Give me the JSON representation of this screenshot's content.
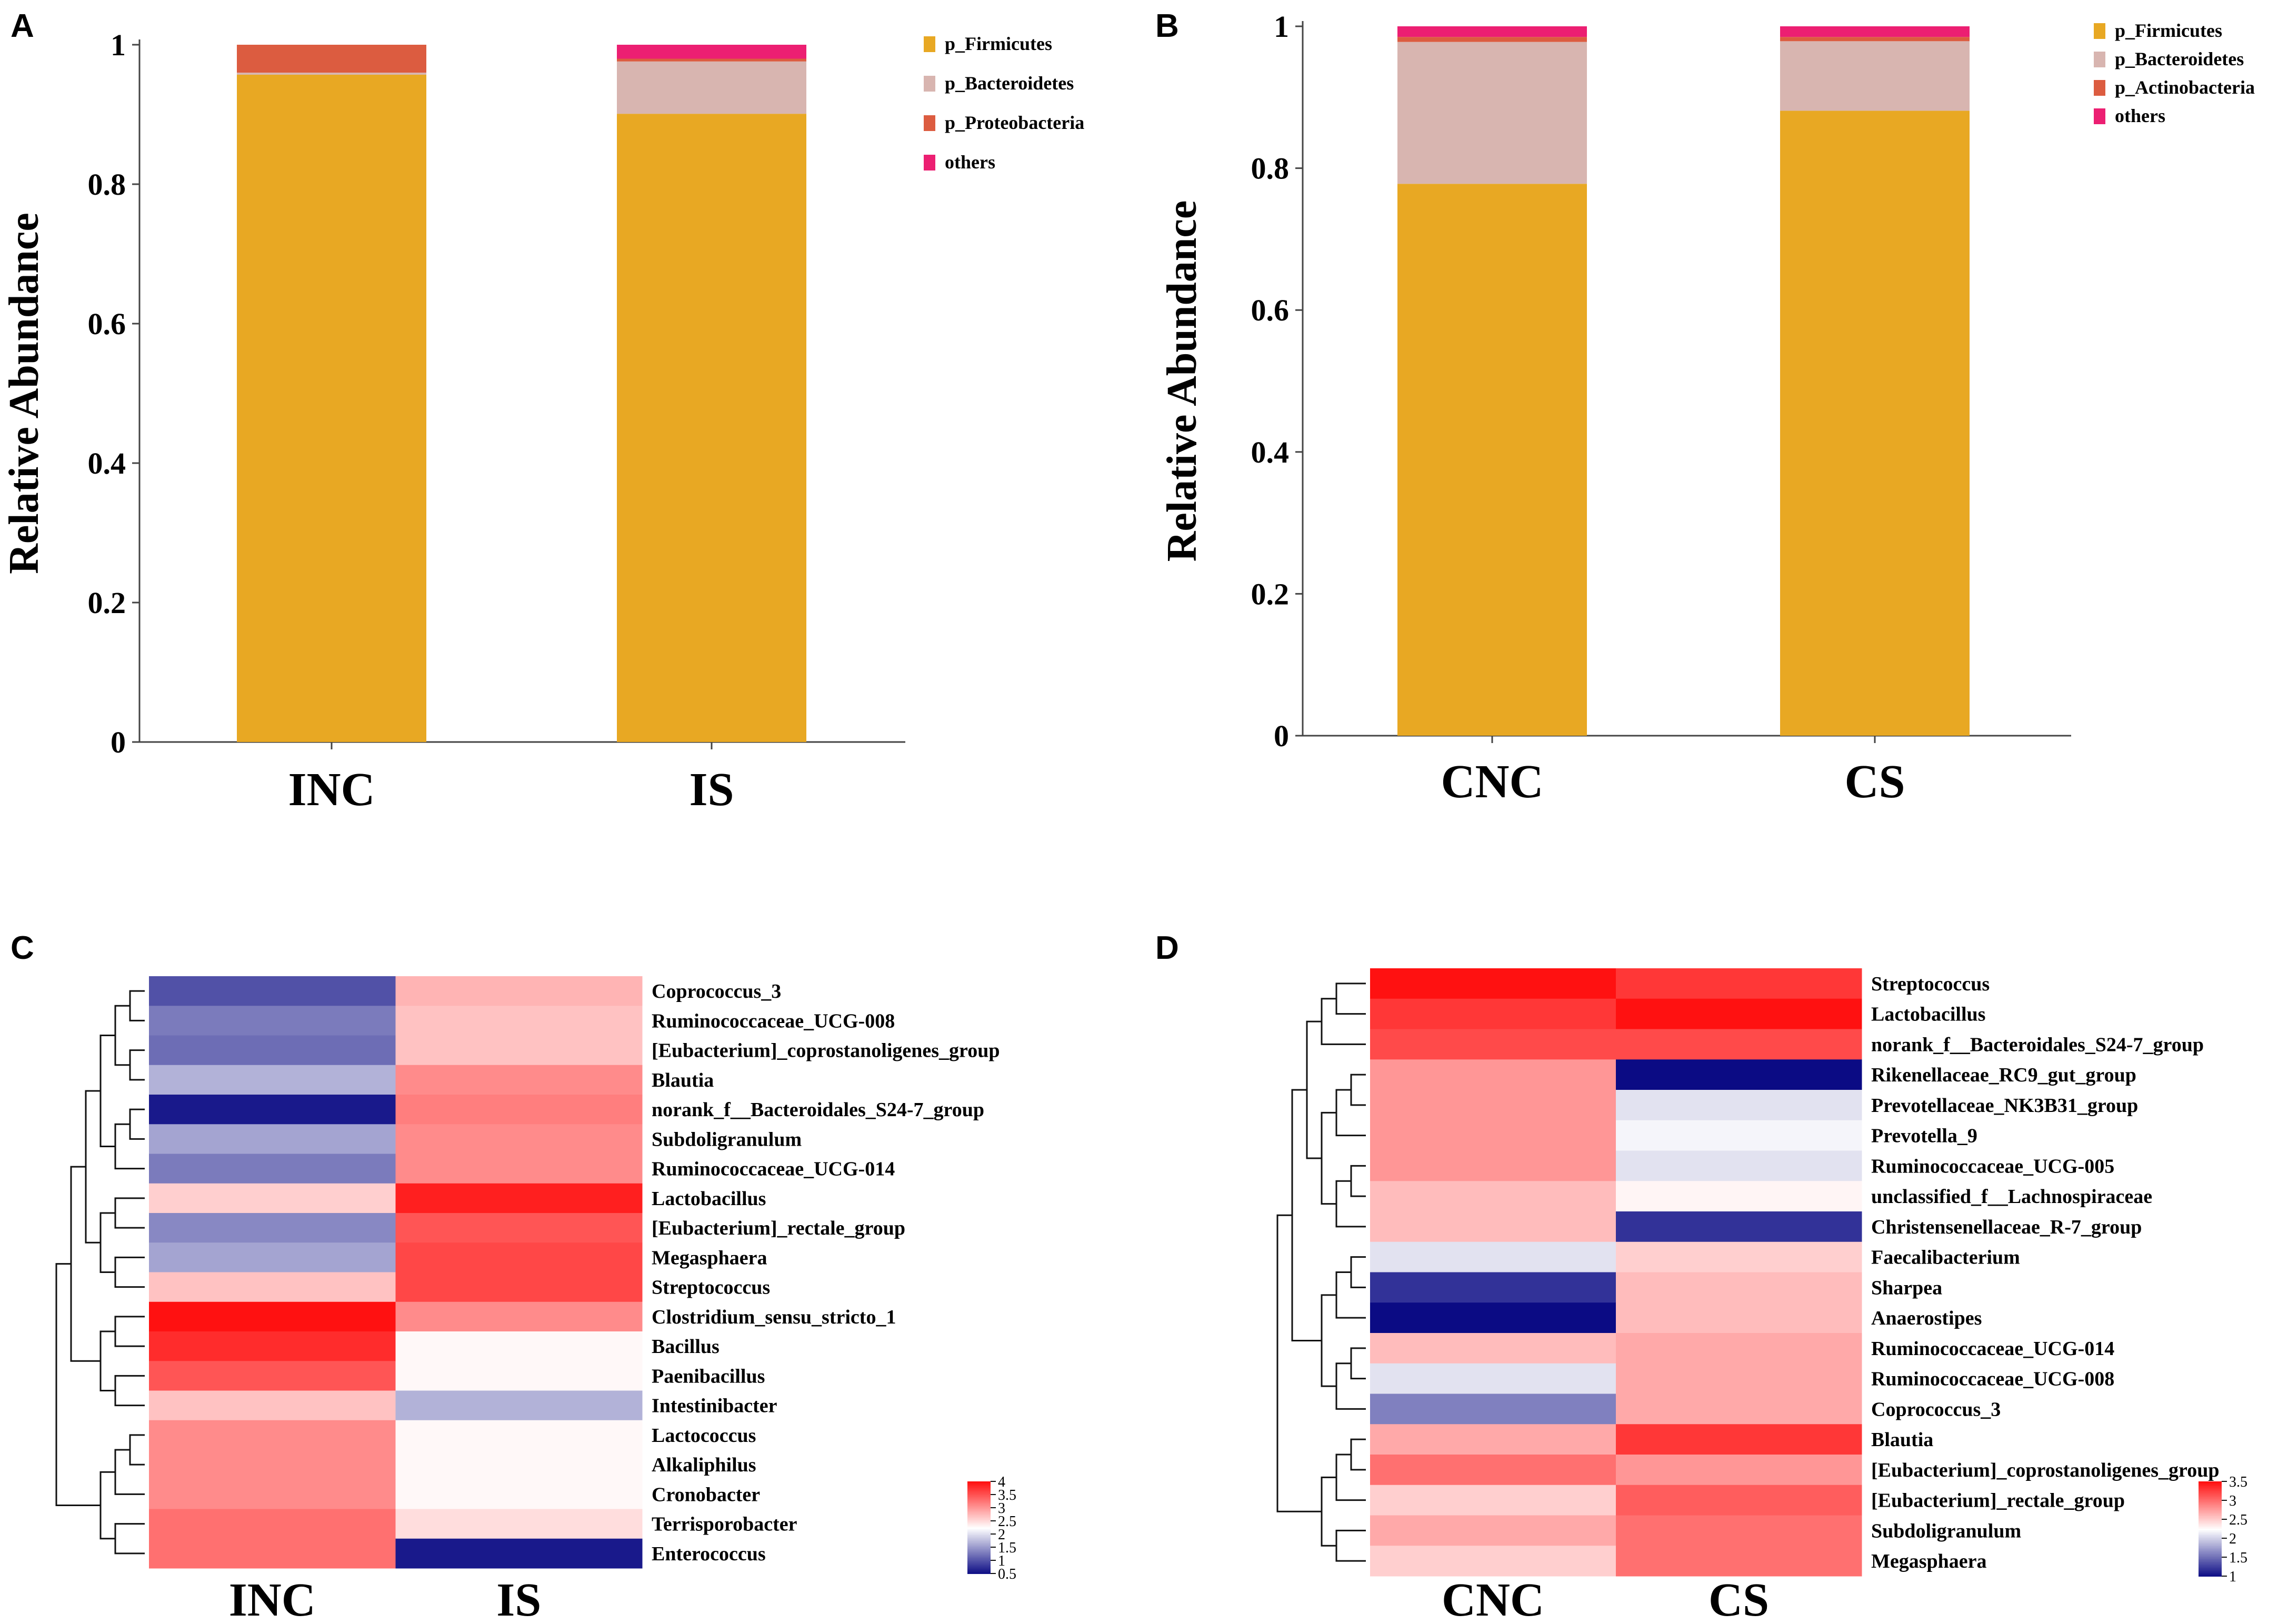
{
  "panels": {
    "A": "A",
    "B": "B",
    "C": "C",
    "D": "D"
  },
  "chart_data": [
    {
      "panel": "A",
      "type": "bar",
      "stacked": true,
      "ylabel": "Relative Abundance",
      "ylim": [
        0,
        1
      ],
      "yticks": [
        "0",
        "0.2",
        "0.4",
        "0.6",
        "0.8",
        "1"
      ],
      "categories": [
        "INC",
        "IS"
      ],
      "legend": "top-right",
      "series": [
        {
          "name": "p_Firmicutes",
          "color": "#E8A823",
          "values": [
            0.957,
            0.901
          ]
        },
        {
          "name": "p_Bacteroidetes",
          "color": "#D8B5B0",
          "values": [
            0.003,
            0.075
          ]
        },
        {
          "name": "p_Proteobacteria",
          "color": "#DC5C40",
          "values": [
            0.04,
            0.004
          ]
        },
        {
          "name": "others",
          "color": "#EC1F72",
          "values": [
            0.0,
            0.02
          ]
        }
      ]
    },
    {
      "panel": "B",
      "type": "bar",
      "stacked": true,
      "ylabel": "Relative Abundance",
      "ylim": [
        0,
        1
      ],
      "yticks": [
        "0",
        "0.2",
        "0.4",
        "0.6",
        "0.8",
        "1"
      ],
      "categories": [
        "CNC",
        "CS"
      ],
      "legend": "top-right",
      "series": [
        {
          "name": "p_Firmicutes",
          "color": "#E8A823",
          "values": [
            0.778,
            0.881
          ]
        },
        {
          "name": "p_Bacteroidetes",
          "color": "#D8B5B0",
          "values": [
            0.2,
            0.098
          ]
        },
        {
          "name": "p_Actinobacteria",
          "color": "#DC5C40",
          "values": [
            0.007,
            0.006
          ]
        },
        {
          "name": "others",
          "color": "#EC1F72",
          "values": [
            0.015,
            0.015
          ]
        }
      ]
    },
    {
      "panel": "C",
      "type": "heatmap",
      "columns": [
        "INC",
        "IS"
      ],
      "rows": [
        {
          "name": "Coprococcus_3",
          "values": [
            1.0,
            2.8
          ]
        },
        {
          "name": "Ruminococcaceae_UCG-008",
          "values": [
            1.3,
            2.7
          ]
        },
        {
          "name": "[Eubacterium]_coprostanoligenes_group",
          "values": [
            1.2,
            2.7
          ]
        },
        {
          "name": "Blautia",
          "values": [
            1.7,
            3.1
          ]
        },
        {
          "name": "norank_f__Bacteroidales_S24-7_group",
          "values": [
            0.6,
            3.2
          ]
        },
        {
          "name": "Subdoligranulum",
          "values": [
            1.6,
            3.1
          ]
        },
        {
          "name": "Ruminococcaceae_UCG-014",
          "values": [
            1.3,
            3.1
          ]
        },
        {
          "name": "Lactobacillus",
          "values": [
            2.6,
            3.9
          ]
        },
        {
          "name": "[Eubacterium]_rectale_group",
          "values": [
            1.4,
            3.5
          ]
        },
        {
          "name": "Megasphaera",
          "values": [
            1.6,
            3.6
          ]
        },
        {
          "name": "Streptococcus",
          "values": [
            2.7,
            3.6
          ]
        },
        {
          "name": "Clostridium_sensu_stricto_1",
          "values": [
            4.0,
            3.1
          ]
        },
        {
          "name": "Bacillus",
          "values": [
            3.8,
            2.3
          ]
        },
        {
          "name": "Paenibacillus",
          "values": [
            3.5,
            2.3
          ]
        },
        {
          "name": "Intestinibacter",
          "values": [
            2.7,
            1.7
          ]
        },
        {
          "name": "Lactococcus",
          "values": [
            3.1,
            2.3
          ]
        },
        {
          "name": "Alkaliphilus",
          "values": [
            3.1,
            2.3
          ]
        },
        {
          "name": "Cronobacter",
          "values": [
            3.1,
            2.3
          ]
        },
        {
          "name": "Terrisporobacter",
          "values": [
            3.3,
            2.5
          ]
        },
        {
          "name": "Enterococcus",
          "values": [
            3.3,
            0.6
          ]
        }
      ],
      "colorbar": {
        "min": 0.5,
        "max": 4,
        "ticks": [
          "4",
          "3.5",
          "3",
          "2.5",
          "2",
          "1.5",
          "1",
          "0.5"
        ]
      },
      "colors": {
        "low": "#0B0B84",
        "mid": "#FFFFFF",
        "high": "#FF1111"
      }
    },
    {
      "panel": "D",
      "type": "heatmap",
      "columns": [
        "CNC",
        "CS"
      ],
      "rows": [
        {
          "name": "Streptococcus",
          "values": [
            3.6,
            3.3
          ]
        },
        {
          "name": "Lactobacillus",
          "values": [
            3.3,
            3.5
          ]
        },
        {
          "name": "norank_f__Bacteroidales_S24-7_group",
          "values": [
            3.2,
            3.2
          ]
        },
        {
          "name": "Rikenellaceae_RC9_gut_group",
          "values": [
            2.8,
            1.0
          ]
        },
        {
          "name": "Prevotellaceae_NK3B31_group",
          "values": [
            2.8,
            2.1
          ]
        },
        {
          "name": "Prevotella_9",
          "values": [
            2.8,
            2.2
          ]
        },
        {
          "name": "Ruminococcaceae_UCG-005",
          "values": [
            2.8,
            2.1
          ]
        },
        {
          "name": "unclassified_f__Lachnospiraceae",
          "values": [
            2.6,
            2.3
          ]
        },
        {
          "name": "Christensenellaceae_R-7_group",
          "values": [
            2.6,
            1.2
          ]
        },
        {
          "name": "Faecalibacterium",
          "values": [
            2.1,
            2.5
          ]
        },
        {
          "name": "Sharpea",
          "values": [
            1.2,
            2.6
          ]
        },
        {
          "name": "Anaerostipes",
          "values": [
            1.0,
            2.6
          ]
        },
        {
          "name": "Ruminococcaceae_UCG-014",
          "values": [
            2.6,
            2.7
          ]
        },
        {
          "name": "Ruminococcaceae_UCG-008",
          "values": [
            2.1,
            2.7
          ]
        },
        {
          "name": "Coprococcus_3",
          "values": [
            1.6,
            2.7
          ]
        },
        {
          "name": "Blautia",
          "values": [
            2.7,
            3.3
          ]
        },
        {
          "name": "[Eubacterium]_coprostanoligenes_group",
          "values": [
            3.0,
            2.8
          ]
        },
        {
          "name": "[Eubacterium]_rectale_group",
          "values": [
            2.5,
            3.1
          ]
        },
        {
          "name": "Subdoligranulum",
          "values": [
            2.7,
            3.0
          ]
        },
        {
          "name": "Megasphaera",
          "values": [
            2.5,
            3.0
          ]
        }
      ],
      "colorbar": {
        "min": 1,
        "max": 3.5,
        "ticks": [
          "3.5",
          "3",
          "2.5",
          "2",
          "1.5",
          "1"
        ]
      },
      "colors": {
        "low": "#0B0B84",
        "mid": "#FFFFFF",
        "high": "#FF1111"
      }
    }
  ]
}
